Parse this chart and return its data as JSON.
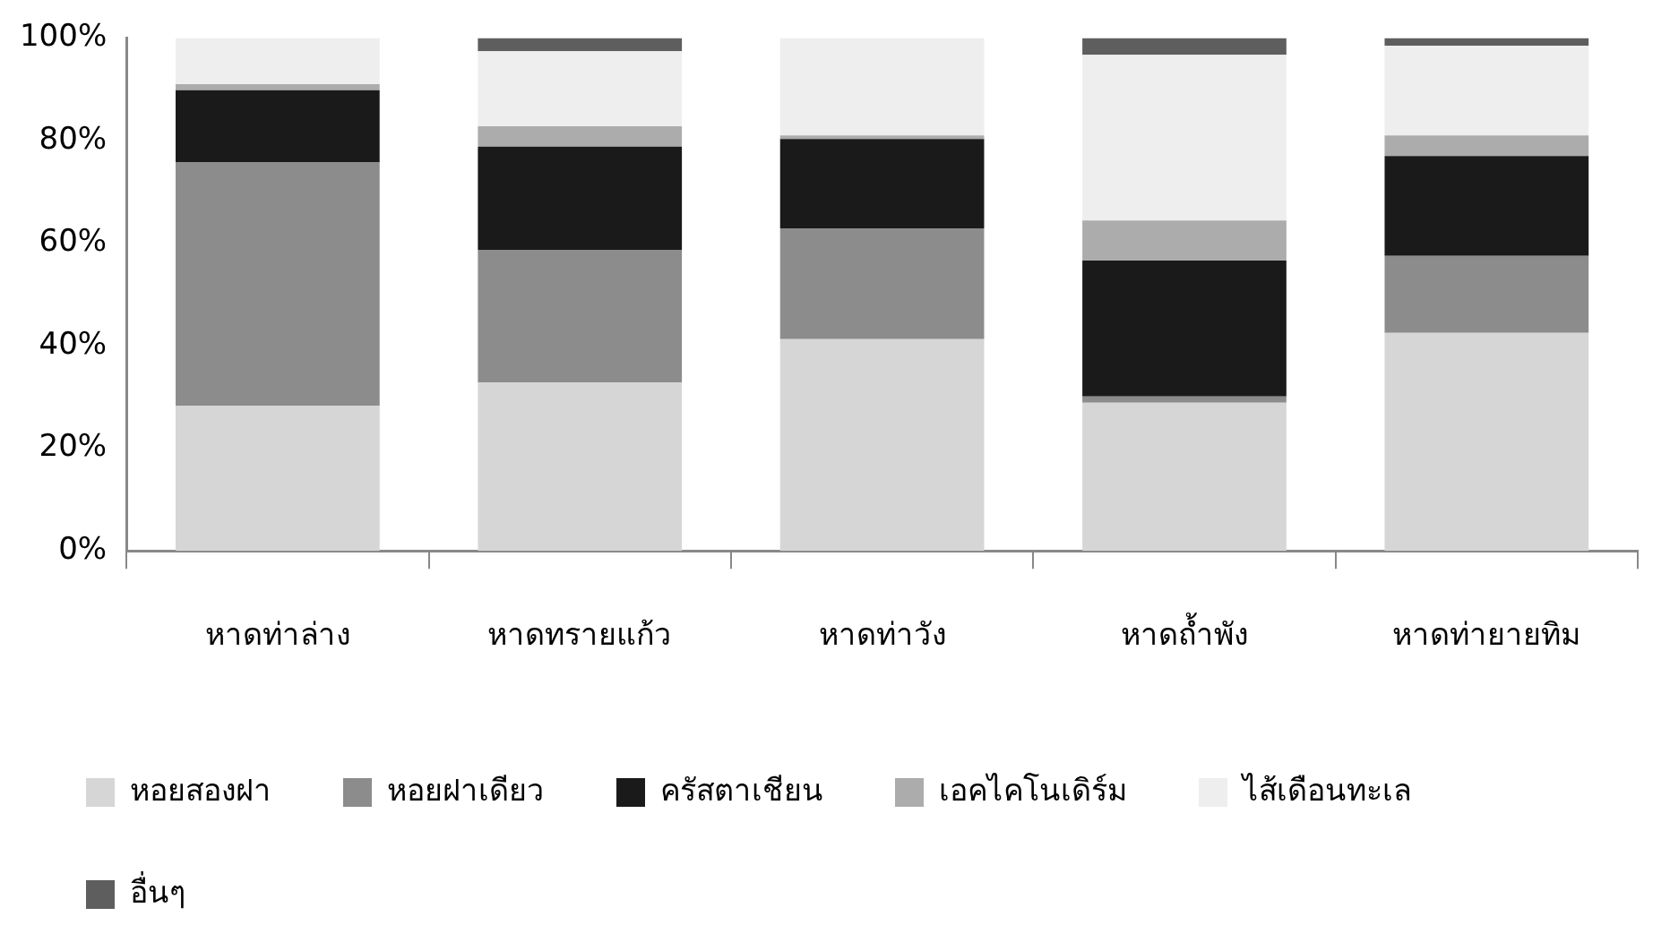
{
  "chart_data": {
    "type": "bar",
    "stacked": true,
    "categories": [
      "หาดท่าล่าง",
      "หาดทรายแก้ว",
      "หาดท่าวัง",
      "หาดถ้ำพัง",
      "หาดท่ายายทิม"
    ],
    "series": [
      {
        "name": "หอยสองฝา",
        "color": "#d6d6d6",
        "values": [
          28.3,
          32.8,
          41.3,
          28.9,
          42.5
        ]
      },
      {
        "name": "หอยฝาเดียว",
        "color": "#8c8c8c",
        "values": [
          47.5,
          25.9,
          21.6,
          1.2,
          15
        ]
      },
      {
        "name": "ครัสตาเชียน",
        "color": "#1a1a1a",
        "values": [
          14,
          20.1,
          17.4,
          26.5,
          19.5
        ]
      },
      {
        "name": "เอคไคโนเดิร์ม",
        "color": "#acacac",
        "values": [
          1.2,
          4,
          0.7,
          7.8,
          4
        ]
      },
      {
        "name": "ไส้เดือนทะเล",
        "color": "#eeeeee",
        "values": [
          9,
          14.6,
          19,
          32.3,
          17.5
        ]
      },
      {
        "name": "อื่นๆ",
        "color": "#5e5e5e",
        "values": [
          0,
          2.6,
          0,
          3.3,
          1.5
        ]
      }
    ],
    "ylim": [
      0,
      100
    ],
    "yticks": [
      {
        "value": 0,
        "label": "0%"
      },
      {
        "value": 20,
        "label": "20%"
      },
      {
        "value": 40,
        "label": "40%"
      },
      {
        "value": 60,
        "label": "60%"
      },
      {
        "value": 80,
        "label": "80%"
      },
      {
        "value": 100,
        "label": "100%"
      }
    ],
    "grid": false,
    "legend": "bottom"
  }
}
